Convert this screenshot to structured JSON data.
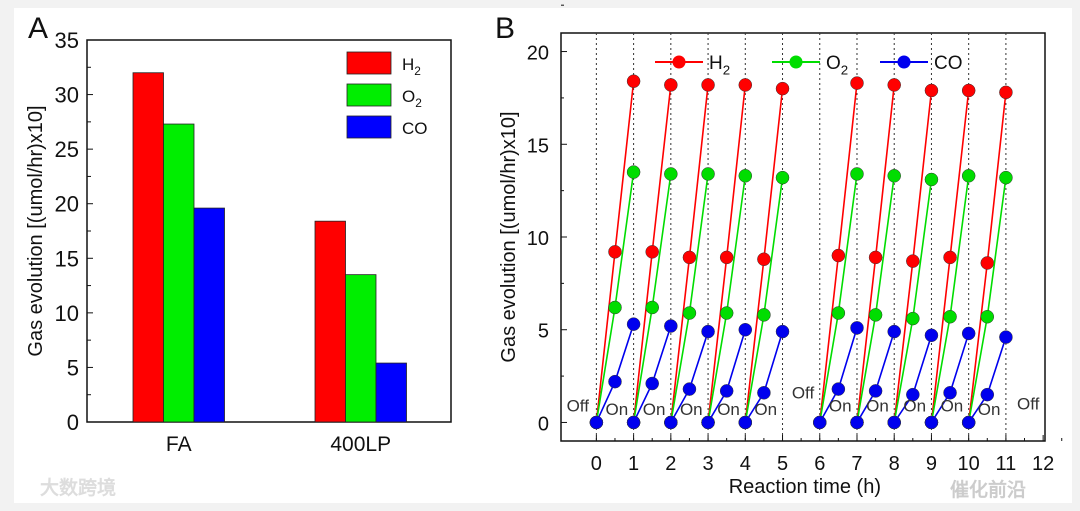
{
  "chart_data": [
    {
      "panel_label": "A",
      "type": "bar",
      "categories": [
        "FA",
        "400LP"
      ],
      "series": [
        {
          "name": "H",
          "sub": "2",
          "color": "#ff0000",
          "values": [
            32.0,
            18.4
          ]
        },
        {
          "name": "O",
          "sub": "2",
          "color": "#00ee00",
          "values": [
            27.3,
            13.5
          ]
        },
        {
          "name": "CO",
          "sub": "",
          "color": "#0000ff",
          "values": [
            19.6,
            5.4
          ]
        }
      ],
      "ylabel": "Gas evolution [(umol/hr)x10]",
      "ylim": [
        0,
        35
      ],
      "yticks": [
        "0",
        "5",
        "10",
        "15",
        "20",
        "25",
        "30",
        "35"
      ],
      "legend": "top-right"
    },
    {
      "panel_label": "B",
      "type": "line",
      "xlabel": "Reaction time (h)",
      "ylabel": "Gas evolution [(umol/hr)x10]",
      "xlim": [
        -0.95,
        12.05
      ],
      "ylim": [
        -1,
        21
      ],
      "xticks": [
        "0",
        "1",
        "2",
        "3",
        "4",
        "5",
        "6",
        "7",
        "8",
        "9",
        "10",
        "11",
        "12"
      ],
      "yticks": [
        "0",
        "5",
        "10",
        "15",
        "20"
      ],
      "cycle_starts": [
        0,
        1,
        2,
        3,
        4,
        6,
        7,
        8,
        9,
        10
      ],
      "series": [
        {
          "name": "H",
          "sub": "2",
          "color": "#ff0000",
          "mid": [
            9.2,
            9.2,
            8.9,
            8.9,
            8.8,
            9.0,
            8.9,
            8.7,
            8.9,
            8.6
          ],
          "end": [
            18.4,
            18.2,
            18.2,
            18.2,
            18.0,
            18.3,
            18.2,
            17.9,
            17.9,
            17.8
          ]
        },
        {
          "name": "O",
          "sub": "2",
          "color": "#00dd00",
          "mid": [
            6.2,
            6.2,
            5.9,
            5.9,
            5.8,
            5.9,
            5.8,
            5.6,
            5.7,
            5.7
          ],
          "end": [
            13.5,
            13.4,
            13.4,
            13.3,
            13.2,
            13.4,
            13.3,
            13.1,
            13.3,
            13.2
          ]
        },
        {
          "name": "CO",
          "sub": "",
          "color": "#0000ee",
          "mid": [
            2.2,
            2.1,
            1.8,
            1.7,
            1.6,
            1.8,
            1.7,
            1.5,
            1.6,
            1.5
          ],
          "end": [
            5.3,
            5.2,
            4.9,
            5.0,
            4.9,
            5.1,
            4.9,
            4.7,
            4.8,
            4.6
          ]
        }
      ],
      "annotations": [
        {
          "text": "Off",
          "x": -0.5,
          "y": 0.6
        },
        {
          "text": "On",
          "x": 0.55,
          "y": 0.4
        },
        {
          "text": "On",
          "x": 1.55,
          "y": 0.4
        },
        {
          "text": "On",
          "x": 2.55,
          "y": 0.4
        },
        {
          "text": "On",
          "x": 3.55,
          "y": 0.4
        },
        {
          "text": "On",
          "x": 4.55,
          "y": 0.4
        },
        {
          "text": "Off",
          "x": 5.55,
          "y": 1.3
        },
        {
          "text": "On",
          "x": 6.55,
          "y": 0.6
        },
        {
          "text": "On",
          "x": 7.55,
          "y": 0.6
        },
        {
          "text": "On",
          "x": 8.55,
          "y": 0.6
        },
        {
          "text": "On",
          "x": 9.55,
          "y": 0.6
        },
        {
          "text": "On",
          "x": 10.55,
          "y": 0.4
        },
        {
          "text": "Off",
          "x": 11.6,
          "y": 0.7
        }
      ],
      "legend": "top"
    }
  ],
  "watermarks": {
    "left": "大数跨境",
    "right": "催化前沿"
  }
}
